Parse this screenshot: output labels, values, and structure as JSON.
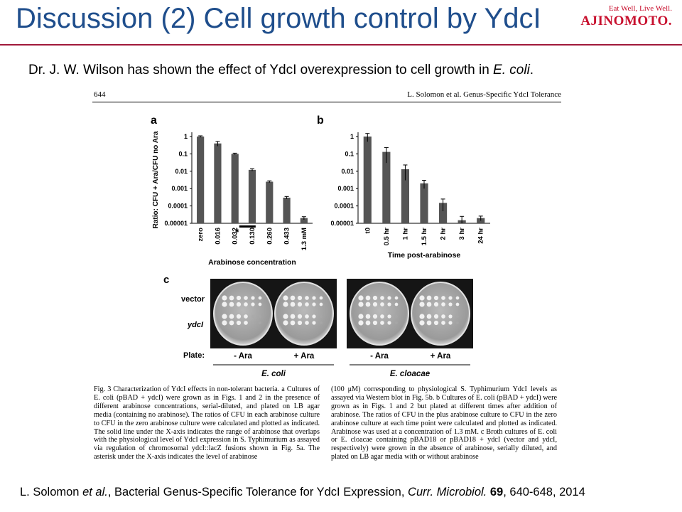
{
  "slide": {
    "title": "Discussion (2) Cell growth control by YdcI",
    "logo_tagline": "Eat Well, Live Well.",
    "logo_brand": "AJINOMOTO.",
    "intro_prefix": "Dr. J. W. Wilson has shown the effect of YdcI overexpression to cell growth in ",
    "intro_em": "E. coli",
    "intro_suffix": "."
  },
  "figure": {
    "page_number": "644",
    "running_head": "L. Solomon et al. Genus-Specific YdcI Tolerance",
    "caption_left": "Fig. 3  Characterization of YdcI effects in non-tolerant bacteria. a Cultures of E. coli (pBAD + ydcI) were grown as in Figs. 1 and 2 in the presence of different arabinose concentrations, serial-diluted, and plated on LB agar media (containing no arabinose). The ratios of CFU in each arabinose culture to CFU in the zero arabinose culture were calculated and plotted as indicated. The solid line under the X-axis indicates the range of arabinose that overlaps with the physiological level of YdcI expression in S. Typhimurium as assayed via regulation of chromosomal ydcI::lacZ fusions shown in Fig. 5a. The asterisk under the X-axis indicates the level of arabinose",
    "caption_right": "(100 μM) corresponding to physiological S. Typhimurium YdcI levels as assayed via Western blot in Fig. 5b. b Cultures of E. coli (pBAD + ydcI) were grown as in Figs. 1 and 2 but plated at different times after addition of arabinose. The ratios of CFU in the plus arabinose culture to CFU in the zero arabinose culture at each time point were calculated and plotted as indicated. Arabinose was used at a concentration of 1.3 mM. c Broth cultures of E. coli or E. cloacae containing pBAD18 or pBAD18 + ydcI (vector and ydcI, respectively) were grown in the absence of arabinose, serially diluted, and plated on LB agar media with or without arabinose",
    "panel_c": {
      "label": "c",
      "row_labels": [
        "vector",
        "ydcI"
      ],
      "plate_label": "Plate:",
      "conditions": [
        "- Ara",
        "+ Ara",
        "- Ara",
        "+ Ara"
      ],
      "organisms": [
        "E. coli",
        "E. cloacae"
      ]
    }
  },
  "chart_data": [
    {
      "type": "bar",
      "panel": "a",
      "categories": [
        "zero",
        "0.016",
        "0.032",
        "0.130",
        "0.260",
        "0.433",
        "1.3 mM"
      ],
      "values": [
        1,
        0.4,
        0.1,
        0.012,
        0.0025,
        0.0003,
        2e-05
      ],
      "errors": [
        0.1,
        0.12,
        0.01,
        0.002,
        0.0003,
        5e-05,
        4e-06
      ],
      "xlabel": "Arabinose concentration",
      "ylabel": "Ratio: CFU + Ara/CFU no Ara",
      "yscale": "log",
      "ylim": [
        1e-05,
        1
      ],
      "yticks": [
        "1",
        "0.1",
        "0.01",
        "0.001",
        "0.0001",
        "0.00001"
      ],
      "annotation": "*"
    },
    {
      "type": "bar",
      "panel": "b",
      "categories": [
        "t0",
        "0.5 hr",
        "1 hr",
        "1.5 hr",
        "2 hr",
        "3 hr",
        "24 hr"
      ],
      "values": [
        1,
        0.13,
        0.013,
        0.002,
        0.00015,
        1.5e-05,
        2e-05
      ],
      "errors": [
        0.5,
        0.1,
        0.01,
        0.001,
        0.0001,
        1e-05,
        6e-06
      ],
      "xlabel": "Time post-arabinose",
      "yscale": "log",
      "ylim": [
        1e-05,
        1
      ],
      "yticks": [
        "1",
        "0.1",
        "0.01",
        "0.001",
        "0.0001",
        "0.00001"
      ]
    }
  ],
  "citation": {
    "authors": "L. Solomon ",
    "etal": "et al.",
    "title": ", Bacterial Genus-Specific Tolerance for YdcI Expression, ",
    "journal": "Curr. Microbiol.",
    "space": " ",
    "volume": "69",
    "pages": ", 640-648, 2014"
  },
  "colors": {
    "title": "#1f4e8c",
    "rule": "#a0193a",
    "brand": "#c8102e",
    "bar": "#555555"
  }
}
